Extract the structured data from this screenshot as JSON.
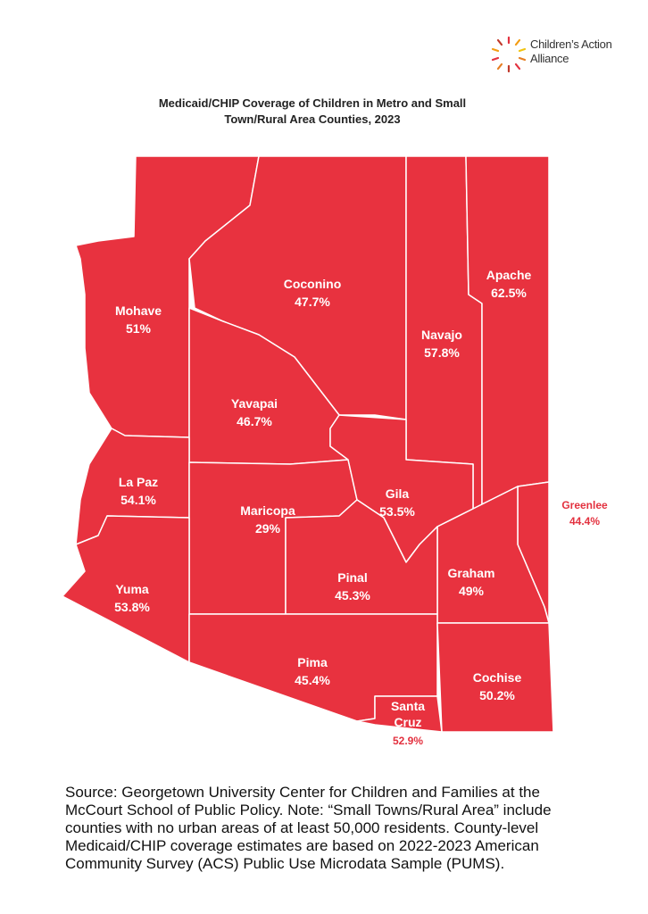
{
  "logo": "Children’s Action Alliance",
  "title": "Medicaid/CHIP Coverage of Children in Metro and Small Town/Rural Area Counties, 2023",
  "counties": [
    {
      "name": "Mohave",
      "value": "51%"
    },
    {
      "name": "Coconino",
      "value": "47.7%"
    },
    {
      "name": "Navajo",
      "value": "57.8%"
    },
    {
      "name": "Apache",
      "value": "62.5%"
    },
    {
      "name": "Yavapai",
      "value": "46.7%"
    },
    {
      "name": "La Paz",
      "value": "54.1%"
    },
    {
      "name": "Maricopa",
      "value": "29%"
    },
    {
      "name": "Gila",
      "value": "53.5%"
    },
    {
      "name": "Greenlee",
      "value": "44.4%"
    },
    {
      "name": "Graham",
      "value": "49%"
    },
    {
      "name": "Yuma",
      "value": "53.8%"
    },
    {
      "name": "Pinal",
      "value": "45.3%"
    },
    {
      "name": "Pima",
      "value": "45.4%"
    },
    {
      "name": "Cochise",
      "value": "50.2%"
    },
    {
      "name": "Santa Cruz",
      "value": "52.9%"
    }
  ],
  "source": "Source: Georgetown University Center for Children and Families at the McCourt School of Public Policy. Note: “Small Towns/Rural Area” include counties with no urban areas of at least 50,000 residents. County-level Medicaid/CHIP coverage estimates are based on 2022-2023 American Community Survey (ACS) Public Use Microdata Sample (PUMS)."
}
